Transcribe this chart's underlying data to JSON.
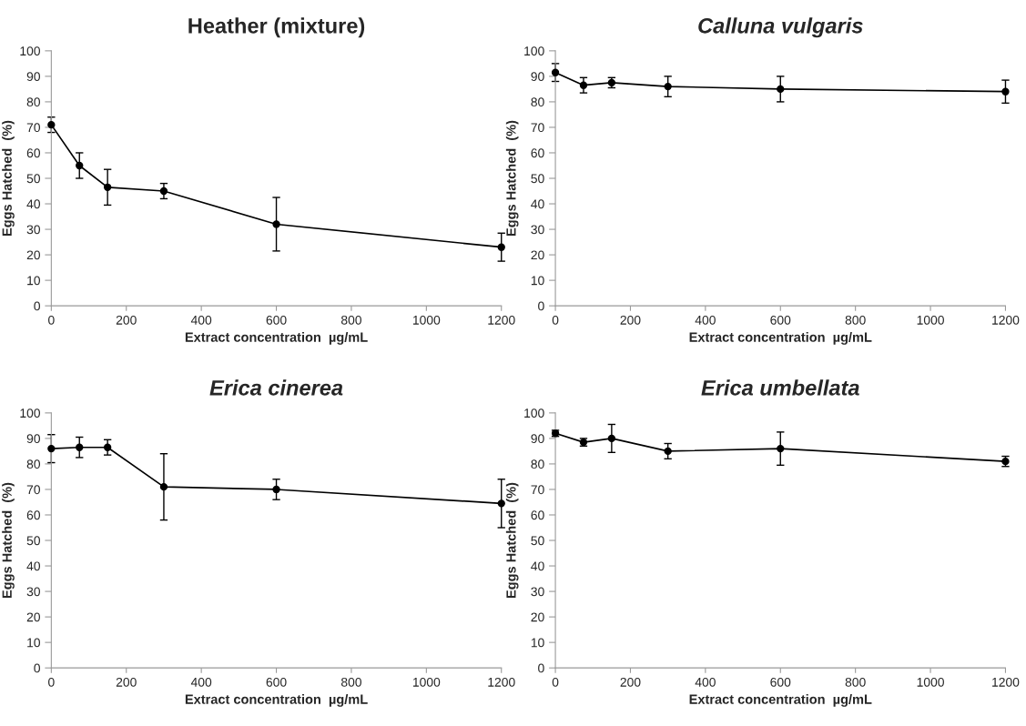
{
  "chart_data": [
    {
      "type": "line",
      "title": "Heather (mixture)",
      "xlabel": "Extract concentration  µg/mL",
      "ylabel": "Eggs Hatched  (%)",
      "x": [
        0,
        75,
        150,
        300,
        600,
        1200
      ],
      "series": [
        {
          "color": "#000000",
          "values": [
            71,
            55,
            46.5,
            45,
            32,
            23
          ],
          "errors": [
            3,
            5,
            7,
            3,
            10.5,
            5.5
          ]
        }
      ],
      "xlim": [
        0,
        1200
      ],
      "xticks": [
        0,
        200,
        400,
        600,
        800,
        1000,
        1200
      ],
      "ylim": [
        0,
        100
      ],
      "yticks": [
        0,
        10,
        20,
        30,
        40,
        50,
        60,
        70,
        80,
        90,
        100
      ],
      "marker": "circle",
      "line_style": "solid",
      "grid": false,
      "legend": false
    },
    {
      "type": "line",
      "title": "Calluna vulgaris",
      "xlabel": "Extract concentration  µg/mL",
      "ylabel": "Eggs Hatched  (%)",
      "x": [
        0,
        75,
        150,
        300,
        600,
        1200
      ],
      "series": [
        {
          "color": "#000000",
          "values": [
            91.5,
            86.5,
            87.5,
            86,
            85,
            84
          ],
          "errors": [
            3.5,
            3,
            2,
            4,
            5,
            4.5
          ]
        }
      ],
      "xlim": [
        0,
        1200
      ],
      "xticks": [
        0,
        200,
        400,
        600,
        800,
        1000,
        1200
      ],
      "ylim": [
        0,
        100
      ],
      "yticks": [
        0,
        10,
        20,
        30,
        40,
        50,
        60,
        70,
        80,
        90,
        100
      ],
      "marker": "circle",
      "line_style": "solid",
      "grid": false,
      "legend": false
    },
    {
      "type": "line",
      "title": "Erica cinerea",
      "xlabel": "Extract concentration  µg/mL",
      "ylabel": "Eggs Hatched  (%)",
      "x": [
        0,
        75,
        150,
        300,
        600,
        1200
      ],
      "series": [
        {
          "color": "#000000",
          "values": [
            86,
            86.5,
            86.5,
            71,
            70,
            64.5
          ],
          "errors": [
            5.5,
            4,
            3,
            13,
            4,
            9.5
          ]
        }
      ],
      "xlim": [
        0,
        1200
      ],
      "xticks": [
        0,
        200,
        400,
        600,
        800,
        1000,
        1200
      ],
      "ylim": [
        0,
        100
      ],
      "yticks": [
        0,
        10,
        20,
        30,
        40,
        50,
        60,
        70,
        80,
        90,
        100
      ],
      "marker": "circle",
      "line_style": "solid",
      "grid": false,
      "legend": false
    },
    {
      "type": "line",
      "title": "Erica umbellata",
      "xlabel": "Extract concentration  µg/mL",
      "ylabel": "Eggs Hatched  (%)",
      "x": [
        0,
        75,
        150,
        300,
        600,
        1200
      ],
      "series": [
        {
          "color": "#000000",
          "values": [
            92,
            88.5,
            90,
            85,
            86,
            81
          ],
          "errors": [
            1.2,
            1.5,
            5.5,
            3,
            6.5,
            2
          ]
        }
      ],
      "xlim": [
        0,
        1200
      ],
      "xticks": [
        0,
        200,
        400,
        600,
        800,
        1000,
        1200
      ],
      "ylim": [
        0,
        100
      ],
      "yticks": [
        0,
        10,
        20,
        30,
        40,
        50,
        60,
        70,
        80,
        90,
        100
      ],
      "marker": "circle",
      "line_style": "solid",
      "grid": false,
      "legend": false
    }
  ]
}
